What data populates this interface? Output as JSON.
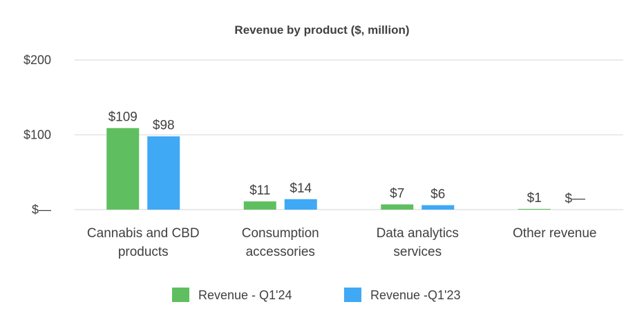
{
  "chart_data": {
    "type": "bar",
    "title": "Revenue by product ($, million)",
    "xlabel": "",
    "ylabel": "",
    "ylim": [
      0,
      200
    ],
    "yticks": [
      {
        "value": 0,
        "label": "$—"
      },
      {
        "value": 100,
        "label": "$100"
      },
      {
        "value": 200,
        "label": "$200"
      }
    ],
    "categories": [
      [
        "Cannabis and CBD",
        "products"
      ],
      [
        "Consumption",
        "accessories"
      ],
      [
        "Data analytics",
        "services"
      ],
      [
        "Other revenue"
      ]
    ],
    "series": [
      {
        "name": "Revenue - Q1'24",
        "color": "#5fbf60",
        "values": [
          109,
          11,
          7,
          1
        ],
        "labels": [
          "$109",
          "$11",
          "$7",
          "$1"
        ]
      },
      {
        "name": "Revenue -Q1'23",
        "color": "#3fa9f5",
        "values": [
          98,
          14,
          6,
          0
        ],
        "labels": [
          "$98",
          "$14",
          "$6",
          "$—"
        ]
      }
    ],
    "grid": true,
    "legend": "bottom"
  }
}
